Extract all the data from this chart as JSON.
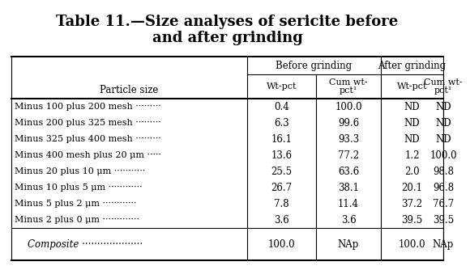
{
  "title_line1": "Table 11.—Size analyses of sericite before",
  "title_line2": "and after grinding",
  "col_header_row1_before": "Before grinding",
  "col_header_row1_after": "After grinding",
  "col_header_row2": [
    "Particle size",
    "Wt-pct",
    "Cum wt-\npct¹",
    "Wt-pct",
    "Cum wt-\npct¹"
  ],
  "rows": [
    [
      "Minus 100 plus 200 mesh ·········",
      "0.4",
      "100.0",
      "ND",
      "ND"
    ],
    [
      "Minus 200 plus 325 mesh ·········",
      "6.3",
      "99.6",
      "ND",
      "ND"
    ],
    [
      "Minus 325 plus 400 mesh ·········",
      "16.1",
      "93.3",
      "ND",
      "ND"
    ],
    [
      "Minus 400 mesh plus 20 μm ·····",
      "13.6",
      "77.2",
      "1.2",
      "100.0"
    ],
    [
      "Minus 20 plus 10 μm ···········",
      "25.5",
      "63.6",
      "2.0",
      "98.8"
    ],
    [
      "Minus 10 plus 5 μm ············",
      "26.7",
      "38.1",
      "20.1",
      "96.8"
    ],
    [
      "Minus 5 plus 2 μm ············",
      "7.8",
      "11.4",
      "37.2",
      "76.7"
    ],
    [
      "Minus 2 plus 0 μm ·············",
      "3.6",
      "3.6",
      "39.5",
      "39.5"
    ]
  ],
  "composite_row": [
    "Composite ····················",
    "100.0",
    "NAp",
    "100.0",
    "NAp"
  ],
  "bg_color": "#ffffff",
  "text_color": "#000000"
}
